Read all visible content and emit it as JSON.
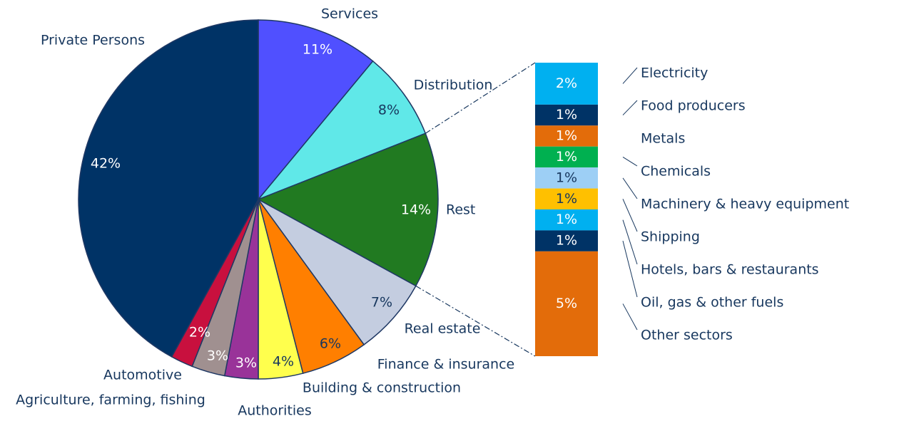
{
  "chart_data": [
    {
      "type": "pie",
      "categories": [
        "Services",
        "Distribution",
        "Rest",
        "Real estate",
        "Finance & insurance",
        "Building & construction",
        "Authorities",
        "Agriculture, farming, fishing",
        "Automotive",
        "Private Persons"
      ],
      "values": [
        11,
        8,
        14,
        7,
        6,
        4,
        3,
        3,
        2,
        42
      ],
      "value_labels": [
        "11%",
        "8%",
        "14%",
        "7%",
        "6%",
        "4%",
        "3%",
        "3%",
        "2%",
        "42%"
      ],
      "colors": [
        "#5050ff",
        "#60e8e8",
        "#217a21",
        "#c4cde0",
        "#ff7f00",
        "#ffff4d",
        "#993399",
        "#a09090",
        "#c8103e",
        "#003366"
      ]
    },
    {
      "type": "bar",
      "categories": [
        "Electricity",
        "Food producers",
        "Metals",
        "Chemicals",
        "Machinery & heavy equipment",
        "Shipping",
        "Hotels, bars & restaurants",
        "Oil, gas & other fuels",
        "Other sectors"
      ],
      "values": [
        2,
        1,
        1,
        1,
        1,
        1,
        1,
        1,
        5
      ],
      "value_labels": [
        "2%",
        "1%",
        "1%",
        "1%",
        "1%",
        "1%",
        "1%",
        "1%",
        "5%"
      ],
      "colors": [
        "#00b0f0",
        "#003366",
        "#e36c0a",
        "#00b050",
        "#9dcff5",
        "#ffc000",
        "#00b0f0",
        "#003366",
        "#e36c0a"
      ]
    }
  ]
}
